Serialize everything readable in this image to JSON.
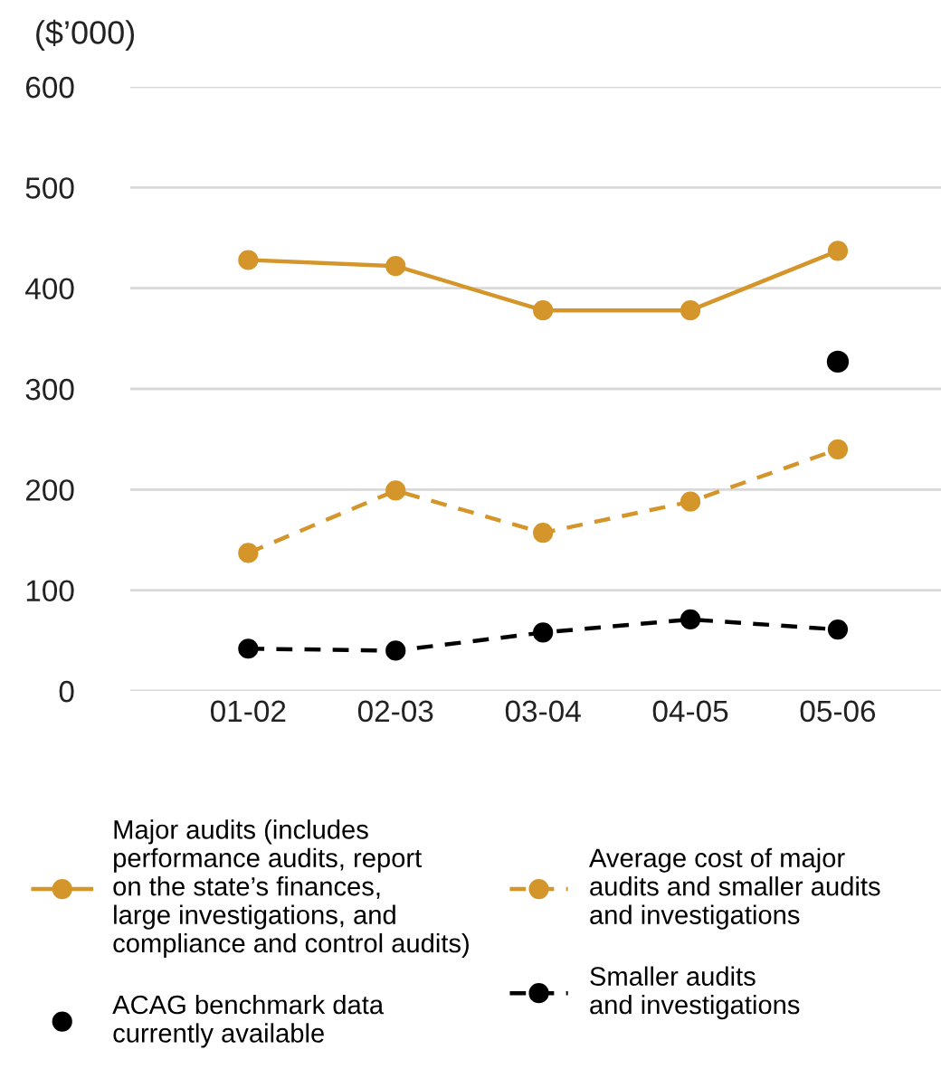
{
  "chart_data": {
    "type": "line",
    "ylabel": "($’000)",
    "categories": [
      "01-02",
      "02-03",
      "03-04",
      "04-05",
      "05-06"
    ],
    "series": [
      {
        "name": "Major audits (includes\nperformance audits, report\non the state’s finances,\nlarge investigations, and\ncompliance and control audits)",
        "color": "#d4952a",
        "values": [
          428,
          422,
          378,
          378,
          437
        ],
        "line_style": "solid"
      },
      {
        "name": "Average cost of major\naudits and smaller audits\nand investigations",
        "color": "#d4952a",
        "values": [
          137,
          199,
          157,
          188,
          240
        ],
        "line_style": "dashed"
      },
      {
        "name": "ACAG benchmark data\ncurrently available",
        "color": "#000000",
        "type": "scatter",
        "values": [
          null,
          null,
          null,
          null,
          327
        ]
      },
      {
        "name": "Smaller audits\nand investigations",
        "color": "#000000",
        "values": [
          42,
          40,
          58,
          71,
          61
        ],
        "line_style": "dashed"
      }
    ],
    "ylim": [
      0,
      600
    ],
    "yticks": [
      0,
      100,
      200,
      300,
      400,
      500,
      600
    ],
    "grid": "y",
    "legend": "bottom",
    "marker": "circle"
  }
}
